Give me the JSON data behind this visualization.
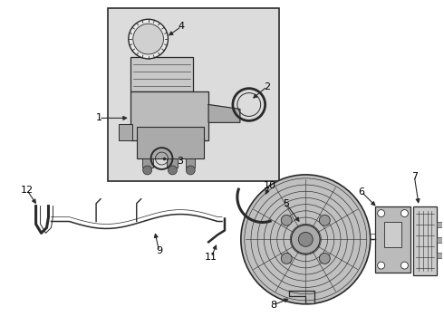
{
  "bg_color": "#ffffff",
  "box_bg": "#dcdcdc",
  "line_color": "#2a2a2a",
  "text_color": "#000000",
  "figw": 4.9,
  "figh": 3.6,
  "dpi": 100
}
